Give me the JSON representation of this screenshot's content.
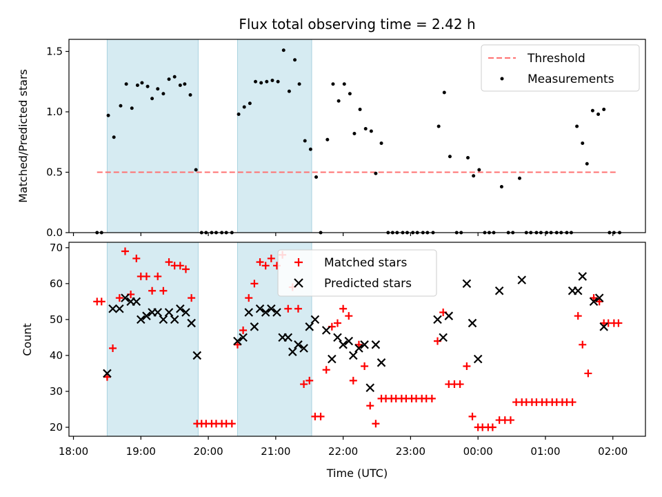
{
  "chart_data": [
    {
      "type": "scatter",
      "title": "Flux total observing time = 2.42 h",
      "xlabel": "",
      "ylabel": "Matched/Predicted stars",
      "xlim": [
        "17:56",
        "02:29"
      ],
      "ylim": [
        0,
        1.6
      ],
      "yticks": [
        "0.0",
        "0.5",
        "1.0",
        "1.5"
      ],
      "shaded_regions": [
        [
          "18:30",
          "19:51"
        ],
        [
          "20:26",
          "21:32"
        ]
      ],
      "legend_position": "top-right",
      "legend": [
        {
          "label": "Threshold",
          "style": "dashed-line"
        },
        {
          "label": "Measurements",
          "style": "dot"
        }
      ],
      "threshold": {
        "name": "Threshold",
        "value": 0.5,
        "x_range": [
          "18:21",
          "02:03"
        ],
        "color": "#ff7070"
      },
      "series": [
        {
          "name": "Measurements",
          "color": "#000000",
          "points": [
            [
              "18:21",
              0
            ],
            [
              "18:25",
              0
            ],
            [
              "18:31",
              0.97
            ],
            [
              "18:36",
              0.79
            ],
            [
              "18:42",
              1.05
            ],
            [
              "18:47",
              1.23
            ],
            [
              "18:52",
              1.03
            ],
            [
              "18:57",
              1.22
            ],
            [
              "19:01",
              1.24
            ],
            [
              "19:06",
              1.21
            ],
            [
              "19:10",
              1.11
            ],
            [
              "19:15",
              1.19
            ],
            [
              "19:20",
              1.15
            ],
            [
              "19:25",
              1.27
            ],
            [
              "19:30",
              1.29
            ],
            [
              "19:35",
              1.22
            ],
            [
              "19:39",
              1.23
            ],
            [
              "19:44",
              1.14
            ],
            [
              "19:49",
              0.52
            ],
            [
              "19:54",
              0
            ],
            [
              "19:58",
              0
            ],
            [
              "20:03",
              0
            ],
            [
              "20:07",
              0
            ],
            [
              "20:12",
              0
            ],
            [
              "20:16",
              0
            ],
            [
              "20:21",
              0
            ],
            [
              "20:27",
              0.98
            ],
            [
              "20:32",
              1.04
            ],
            [
              "20:37",
              1.07
            ],
            [
              "20:42",
              1.25
            ],
            [
              "20:47",
              1.24
            ],
            [
              "20:52",
              1.25
            ],
            [
              "20:57",
              1.26
            ],
            [
              "21:02",
              1.25
            ],
            [
              "21:07",
              1.51
            ],
            [
              "21:12",
              1.17
            ],
            [
              "21:17",
              1.43
            ],
            [
              "21:21",
              1.23
            ],
            [
              "21:26",
              0.76
            ],
            [
              "21:31",
              0.69
            ],
            [
              "21:36",
              0.46
            ],
            [
              "21:40",
              0
            ],
            [
              "21:46",
              0.77
            ],
            [
              "21:51",
              1.23
            ],
            [
              "21:56",
              1.09
            ],
            [
              "22:01",
              1.23
            ],
            [
              "22:06",
              1.15
            ],
            [
              "22:10",
              0.82
            ],
            [
              "22:15",
              1.02
            ],
            [
              "22:20",
              0.86
            ],
            [
              "22:25",
              0.84
            ],
            [
              "22:29",
              0.49
            ],
            [
              "22:34",
              0.74
            ],
            [
              "22:40",
              0
            ],
            [
              "22:44",
              0
            ],
            [
              "22:48",
              0
            ],
            [
              "22:53",
              0
            ],
            [
              "22:57",
              0
            ],
            [
              "23:02",
              0
            ],
            [
              "23:06",
              0
            ],
            [
              "23:11",
              0
            ],
            [
              "23:15",
              0
            ],
            [
              "23:20",
              0
            ],
            [
              "23:25",
              0.88
            ],
            [
              "23:30",
              1.16
            ],
            [
              "23:35",
              0.63
            ],
            [
              "23:41",
              0
            ],
            [
              "23:45",
              0
            ],
            [
              "23:51",
              0.62
            ],
            [
              "23:56",
              0.47
            ],
            [
              "00:01",
              0.52
            ],
            [
              "00:06",
              0
            ],
            [
              "00:10",
              0
            ],
            [
              "00:14",
              0
            ],
            [
              "00:21",
              0.38
            ],
            [
              "00:27",
              0
            ],
            [
              "00:31",
              0
            ],
            [
              "00:37",
              0.45
            ],
            [
              "00:43",
              0
            ],
            [
              "00:47",
              0
            ],
            [
              "00:52",
              0
            ],
            [
              "00:56",
              0
            ],
            [
              "01:01",
              0
            ],
            [
              "01:05",
              0
            ],
            [
              "01:10",
              0
            ],
            [
              "01:14",
              0
            ],
            [
              "01:19",
              0
            ],
            [
              "01:23",
              0
            ],
            [
              "01:28",
              0.88
            ],
            [
              "01:33",
              0.74
            ],
            [
              "01:37",
              0.57
            ],
            [
              "01:42",
              1.01
            ],
            [
              "01:47",
              0.98
            ],
            [
              "01:52",
              1.02
            ],
            [
              "01:57",
              0
            ],
            [
              "02:01",
              0
            ],
            [
              "02:06",
              0
            ]
          ]
        }
      ]
    },
    {
      "type": "scatter",
      "title": "",
      "xlabel": "Time (UTC)",
      "ylabel": "Count",
      "xlim": [
        "17:56",
        "02:29"
      ],
      "ylim": [
        17.5,
        71.5
      ],
      "xticks": [
        "18:00",
        "19:00",
        "20:00",
        "21:00",
        "22:00",
        "23:00",
        "00:00",
        "01:00",
        "02:00"
      ],
      "yticks": [
        "20",
        "30",
        "40",
        "50",
        "60",
        "70"
      ],
      "shaded_regions": [
        [
          "18:30",
          "19:51"
        ],
        [
          "20:26",
          "21:32"
        ]
      ],
      "legend_position": "top-center",
      "legend": [
        {
          "label": "Matched stars",
          "style": "plus"
        },
        {
          "label": "Predicted stars",
          "style": "x"
        }
      ],
      "series": [
        {
          "name": "Matched stars",
          "color": "#ff0000",
          "points": [
            [
              "18:21",
              55
            ],
            [
              "18:25",
              55
            ],
            [
              "18:30",
              34
            ],
            [
              "18:35",
              42
            ],
            [
              "18:41",
              56
            ],
            [
              "18:46",
              69
            ],
            [
              "18:51",
              57
            ],
            [
              "18:56",
              67
            ],
            [
              "19:00",
              62
            ],
            [
              "19:05",
              62
            ],
            [
              "19:10",
              58
            ],
            [
              "19:15",
              62
            ],
            [
              "19:20",
              58
            ],
            [
              "19:25",
              66
            ],
            [
              "19:30",
              65
            ],
            [
              "19:35",
              65
            ],
            [
              "19:40",
              64
            ],
            [
              "19:45",
              56
            ],
            [
              "19:50",
              21
            ],
            [
              "19:54",
              21
            ],
            [
              "19:58",
              21
            ],
            [
              "20:03",
              21
            ],
            [
              "20:07",
              21
            ],
            [
              "20:12",
              21
            ],
            [
              "20:16",
              21
            ],
            [
              "20:21",
              21
            ],
            [
              "20:26",
              43
            ],
            [
              "20:31",
              47
            ],
            [
              "20:36",
              56
            ],
            [
              "20:41",
              60
            ],
            [
              "20:46",
              66
            ],
            [
              "20:51",
              65
            ],
            [
              "20:56",
              67
            ],
            [
              "21:01",
              65
            ],
            [
              "21:06",
              68
            ],
            [
              "21:11",
              53
            ],
            [
              "21:15",
              59
            ],
            [
              "21:20",
              53
            ],
            [
              "21:25",
              32
            ],
            [
              "21:30",
              33
            ],
            [
              "21:35",
              23
            ],
            [
              "21:40",
              23
            ],
            [
              "21:45",
              36
            ],
            [
              "21:50",
              48
            ],
            [
              "21:55",
              49
            ],
            [
              "22:00",
              53
            ],
            [
              "22:05",
              51
            ],
            [
              "22:09",
              33
            ],
            [
              "22:14",
              43
            ],
            [
              "22:19",
              37
            ],
            [
              "22:24",
              26
            ],
            [
              "22:29",
              21
            ],
            [
              "22:34",
              28
            ],
            [
              "22:38",
              28
            ],
            [
              "22:43",
              28
            ],
            [
              "22:47",
              28
            ],
            [
              "22:52",
              28
            ],
            [
              "22:56",
              28
            ],
            [
              "23:01",
              28
            ],
            [
              "23:05",
              28
            ],
            [
              "23:10",
              28
            ],
            [
              "23:14",
              28
            ],
            [
              "23:19",
              28
            ],
            [
              "23:24",
              44
            ],
            [
              "23:29",
              52
            ],
            [
              "23:34",
              32
            ],
            [
              "23:39",
              32
            ],
            [
              "23:44",
              32
            ],
            [
              "23:50",
              37
            ],
            [
              "23:55",
              23
            ],
            [
              "24:00",
              20
            ],
            [
              "24:04",
              20
            ],
            [
              "24:09",
              20
            ],
            [
              "24:13",
              20
            ],
            [
              "24:19",
              22
            ],
            [
              "24:24",
              22
            ],
            [
              "24:29",
              22
            ],
            [
              "24:34",
              27
            ],
            [
              "24:39",
              27
            ],
            [
              "24:43",
              27
            ],
            [
              "24:48",
              27
            ],
            [
              "24:52",
              27
            ],
            [
              "24:57",
              27
            ],
            [
              "25:01",
              27
            ],
            [
              "25:06",
              27
            ],
            [
              "25:10",
              27
            ],
            [
              "25:15",
              27
            ],
            [
              "25:19",
              27
            ],
            [
              "25:24",
              27
            ],
            [
              "25:29",
              51
            ],
            [
              "25:33",
              43
            ],
            [
              "25:38",
              35
            ],
            [
              "25:43",
              56
            ],
            [
              "25:48",
              55
            ],
            [
              "25:52",
              49
            ],
            [
              "25:56",
              49
            ],
            [
              "26:01",
              49
            ],
            [
              "26:05",
              49
            ]
          ]
        },
        {
          "name": "Predicted stars",
          "color": "#000000",
          "points": [
            [
              "18:30",
              35
            ],
            [
              "18:35",
              53
            ],
            [
              "18:41",
              53
            ],
            [
              "18:46",
              56
            ],
            [
              "18:51",
              55
            ],
            [
              "18:56",
              55
            ],
            [
              "19:00",
              50
            ],
            [
              "19:05",
              51
            ],
            [
              "19:10",
              52
            ],
            [
              "19:15",
              52
            ],
            [
              "19:20",
              50
            ],
            [
              "19:25",
              52
            ],
            [
              "19:30",
              50
            ],
            [
              "19:35",
              53
            ],
            [
              "19:40",
              52
            ],
            [
              "19:45",
              49
            ],
            [
              "19:50",
              40
            ],
            [
              "20:26",
              44
            ],
            [
              "20:31",
              45
            ],
            [
              "20:36",
              52
            ],
            [
              "20:41",
              48
            ],
            [
              "20:46",
              53
            ],
            [
              "20:51",
              52
            ],
            [
              "20:56",
              53
            ],
            [
              "21:01",
              52
            ],
            [
              "21:06",
              45
            ],
            [
              "21:11",
              45
            ],
            [
              "21:15",
              41
            ],
            [
              "21:20",
              43
            ],
            [
              "21:25",
              42
            ],
            [
              "21:30",
              48
            ],
            [
              "21:35",
              50
            ],
            [
              "21:45",
              47
            ],
            [
              "21:50",
              39
            ],
            [
              "21:55",
              45
            ],
            [
              "22:00",
              43
            ],
            [
              "22:05",
              44
            ],
            [
              "22:09",
              40
            ],
            [
              "22:14",
              42
            ],
            [
              "22:19",
              43
            ],
            [
              "22:24",
              31
            ],
            [
              "22:29",
              43
            ],
            [
              "22:34",
              38
            ],
            [
              "23:24",
              50
            ],
            [
              "23:29",
              45
            ],
            [
              "23:34",
              51
            ],
            [
              "23:50",
              60
            ],
            [
              "23:55",
              49
            ],
            [
              "24:00",
              39
            ],
            [
              "24:19",
              58
            ],
            [
              "24:39",
              61
            ],
            [
              "25:24",
              58
            ],
            [
              "25:29",
              58
            ],
            [
              "25:33",
              62
            ],
            [
              "25:43",
              55
            ],
            [
              "25:48",
              56
            ],
            [
              "25:52",
              48
            ]
          ]
        }
      ]
    }
  ]
}
